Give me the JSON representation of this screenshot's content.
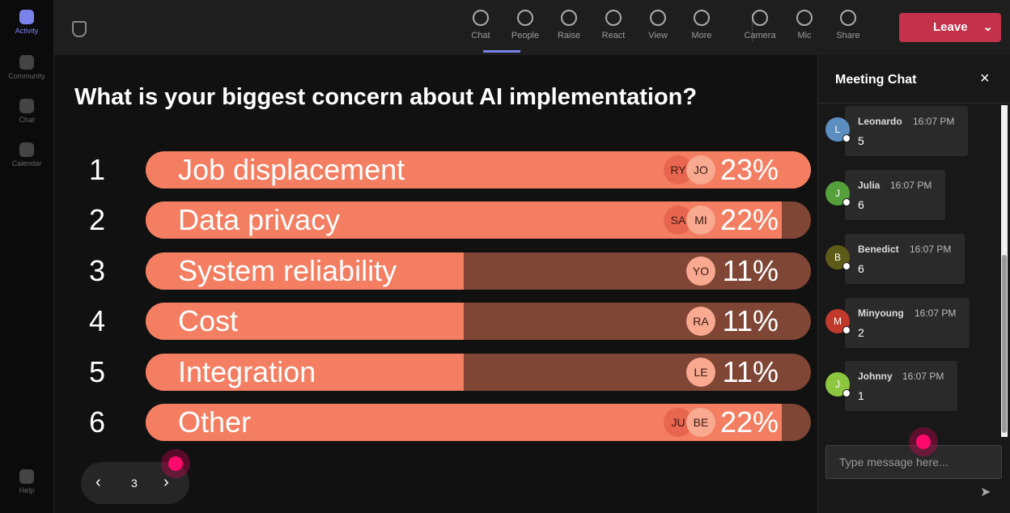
{
  "rail": [
    "Activity",
    "Community",
    "Chat",
    "Calendar",
    "Help"
  ],
  "toolbar": [
    "Chat",
    "People",
    "Raise",
    "React",
    "View",
    "More",
    "Camera",
    "Mic",
    "Share"
  ],
  "leave": "Leave",
  "poll": {
    "question": "What is your biggest concern about AI implementation?",
    "options": [
      {
        "rank": "1",
        "label": "Job displacement",
        "voters": [
          "RY",
          "JO"
        ],
        "value": 23,
        "value_label": "23%"
      },
      {
        "rank": "2",
        "label": "Data privacy",
        "voters": [
          "SA",
          "MI"
        ],
        "value": 22,
        "value_label": "22%"
      },
      {
        "rank": "3",
        "label": "System reliability",
        "voters": [
          "YO"
        ],
        "value": 11,
        "value_label": "11%"
      },
      {
        "rank": "4",
        "label": "Cost",
        "voters": [
          "RA"
        ],
        "value": 11,
        "value_label": "11%"
      },
      {
        "rank": "5",
        "label": "Integration",
        "voters": [
          "LE"
        ],
        "value": 11,
        "value_label": "11%"
      },
      {
        "rank": "6",
        "label": "Other",
        "voters": [
          "JU",
          "BE"
        ],
        "value": 22,
        "value_label": "22%"
      }
    ],
    "page": "3"
  },
  "chat": {
    "title": "Meeting Chat",
    "messages": [
      {
        "initial": "L",
        "name": "Leonardo",
        "time": "16:07 PM",
        "text": "5",
        "color": "#5b8fc0"
      },
      {
        "initial": "J",
        "name": "Julia",
        "time": "16:07 PM",
        "text": "6",
        "color": "#55a03c"
      },
      {
        "initial": "B",
        "name": "Benedict",
        "time": "16:07 PM",
        "text": "6",
        "color": "#5e5a18"
      },
      {
        "initial": "M",
        "name": "Minyoung",
        "time": "16:07 PM",
        "text": "2",
        "color": "#c0392b"
      },
      {
        "initial": "J",
        "name": "Johnny",
        "time": "16:07 PM",
        "text": "1",
        "color": "#8dc63f"
      }
    ],
    "placeholder": "Type message here..."
  }
}
